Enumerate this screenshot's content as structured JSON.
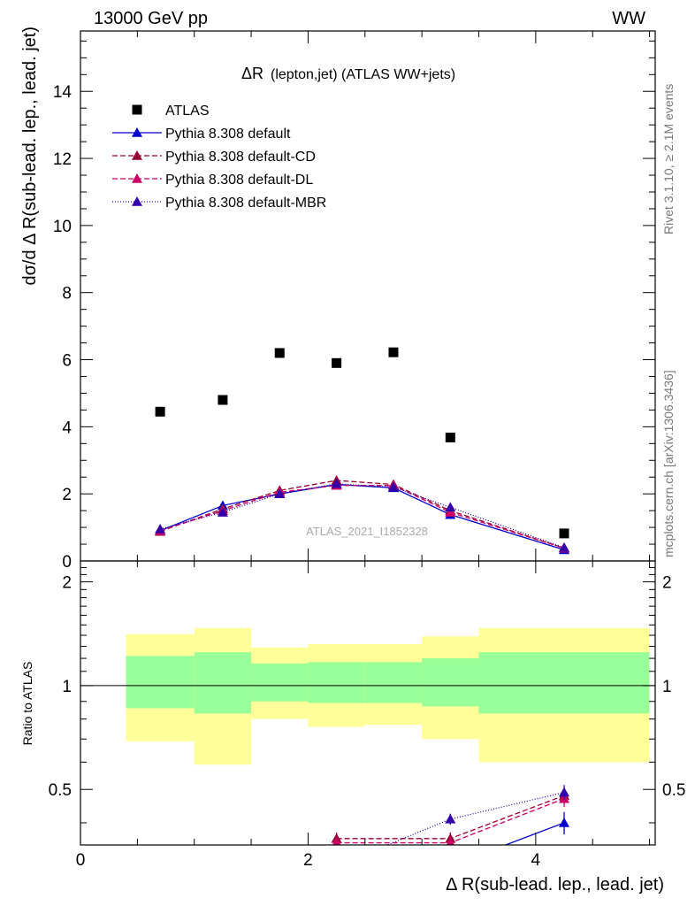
{
  "header": {
    "left": "13000 GeV pp",
    "right": "WW"
  },
  "side_text": {
    "rivet": "Rivet 3.1.10, ≥ 2.1M events",
    "source": "mcplots.cern.ch [arXiv:1306.3436]"
  },
  "chart_data": [
    {
      "type": "scatter",
      "title": "ΔR(lepton,jet) (ATLAS WW+jets)",
      "title_main": "ΔR",
      "title_sub": "(lepton,jet) (ATLAS WW+jets)",
      "ylabel": "dσ/d Δ R(sub-lead. lep., lead. jet)",
      "watermark": "ATLAS_2021_I1852328",
      "xlim": [
        0,
        5.05
      ],
      "ylim": [
        0,
        15.8
      ],
      "yticks": [
        0,
        2,
        4,
        6,
        8,
        10,
        12,
        14
      ],
      "ytick_labels": [
        "0",
        "2",
        "4",
        "6",
        "8",
        "10",
        "12",
        "14"
      ],
      "legend_position": "top-left",
      "data": {
        "name": "ATLAS",
        "x": [
          0.7,
          1.25,
          1.75,
          2.25,
          2.75,
          3.25,
          4.25
        ],
        "y": [
          4.45,
          4.8,
          6.2,
          5.9,
          6.22,
          3.68,
          0.82
        ]
      },
      "series": [
        {
          "name": "Pythia 8.308 default",
          "color": "#0000cc",
          "dash": "",
          "y": [
            0.9,
            1.65,
            2.0,
            2.28,
            2.18,
            1.38,
            0.33
          ]
        },
        {
          "name": "Pythia 8.308 default-CD",
          "color": "#990033",
          "dash": "6,3",
          "y": [
            0.88,
            1.55,
            2.1,
            2.4,
            2.28,
            1.5,
            0.38
          ]
        },
        {
          "name": "Pythia 8.308 default-DL",
          "color": "#cc0066",
          "dash": "6,3",
          "y": [
            0.9,
            1.5,
            2.05,
            2.25,
            2.25,
            1.45,
            0.38
          ]
        },
        {
          "name": "Pythia 8.308 default-MBR",
          "color": "#3300aa",
          "dash": "1,2",
          "y": [
            0.95,
            1.45,
            2.0,
            2.3,
            2.2,
            1.6,
            0.4
          ]
        }
      ]
    },
    {
      "type": "line",
      "ylabel": "Ratio to ATLAS",
      "xlabel": "Δ R(sub-lead. lep., lead. jet)",
      "xlim": [
        0,
        5.05
      ],
      "ylim": [
        0.345,
        2.3
      ],
      "xticks": [
        0,
        2,
        4
      ],
      "xtick_labels": [
        "0",
        "2",
        "4"
      ],
      "yticks": [
        0.5,
        1,
        2
      ],
      "ytick_labels": [
        "0.5",
        "1",
        "2"
      ],
      "bins": [
        {
          "lo": 0.4,
          "hi": 1.0,
          "stat_lo": 0.86,
          "stat_hi": 1.22,
          "tot_lo": 0.69,
          "tot_hi": 1.41
        },
        {
          "lo": 1.0,
          "hi": 1.5,
          "stat_lo": 0.83,
          "stat_hi": 1.25,
          "tot_lo": 0.59,
          "tot_hi": 1.47
        },
        {
          "lo": 1.5,
          "hi": 2.0,
          "stat_lo": 0.9,
          "stat_hi": 1.16,
          "tot_lo": 0.8,
          "tot_hi": 1.29
        },
        {
          "lo": 2.0,
          "hi": 2.5,
          "stat_lo": 0.89,
          "stat_hi": 1.17,
          "tot_lo": 0.76,
          "tot_hi": 1.32
        },
        {
          "lo": 2.5,
          "hi": 3.0,
          "stat_lo": 0.89,
          "stat_hi": 1.17,
          "tot_lo": 0.77,
          "tot_hi": 1.32
        },
        {
          "lo": 3.0,
          "hi": 3.5,
          "stat_lo": 0.87,
          "stat_hi": 1.2,
          "tot_lo": 0.7,
          "tot_hi": 1.39
        },
        {
          "lo": 3.5,
          "hi": 5.0,
          "stat_lo": 0.83,
          "stat_hi": 1.25,
          "tot_lo": 0.6,
          "tot_hi": 1.47
        }
      ],
      "series": [
        {
          "name": "Pythia 8.308 default",
          "x": [
            2.25,
            2.75,
            3.25,
            4.25
          ],
          "y": [
            0.25,
            0.25,
            0.3,
            0.4
          ],
          "err": [
            0,
            0,
            0,
            0.03
          ]
        },
        {
          "name": "Pythia 8.308 default-CD",
          "x": [
            2.25,
            3.25,
            4.25
          ],
          "y": [
            0.36,
            0.36,
            0.48
          ],
          "err": [
            0.015,
            0.015,
            0.025
          ]
        },
        {
          "name": "Pythia 8.308 default-DL",
          "x": [
            2.25,
            3.25,
            4.25
          ],
          "y": [
            0.35,
            0.35,
            0.47
          ],
          "err": [
            0.015,
            0.015,
            0.025
          ]
        },
        {
          "name": "Pythia 8.308 default-MBR",
          "x": [
            2.25,
            3.25,
            4.25
          ],
          "y": [
            0.3,
            0.41,
            0.49
          ],
          "err": [
            0,
            0.015,
            0.025
          ]
        }
      ],
      "colors": {
        "stat_band": "#99ff99",
        "total_band": "#ffff99"
      }
    }
  ]
}
